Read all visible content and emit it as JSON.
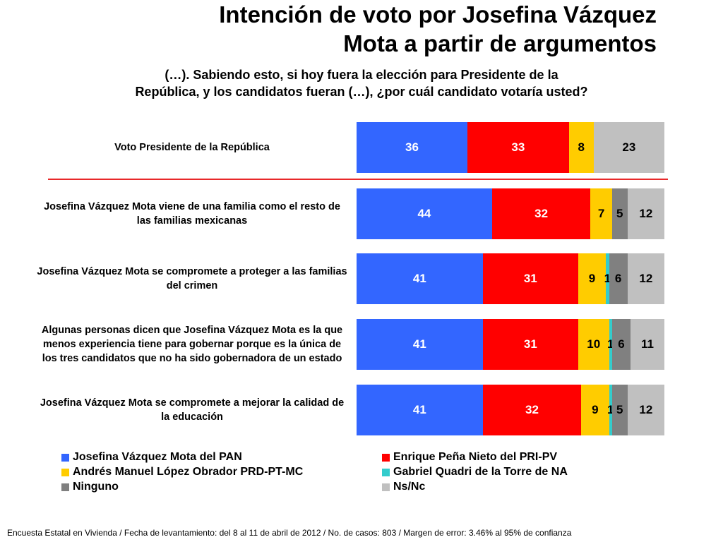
{
  "title": {
    "line1": "Intención de voto por Josefina Vázquez",
    "line2": "Mota a partir de argumentos"
  },
  "subtitle": {
    "line1": "(…). Sabiendo esto, si hoy fuera la elección para Presidente de la",
    "line2": "República, y los candidatos fueran (…), ¿por cuál candidato votaría usted?"
  },
  "colors": {
    "pan": "#3366ff",
    "pri": "#ff0000",
    "prd": "#ffcc00",
    "na": "#33cccc",
    "ninguno": "#808080",
    "nsnc": "#c0c0c0"
  },
  "chart_data": {
    "type": "bar",
    "orientation": "horizontal",
    "stacked": true,
    "percent": true,
    "categories": [
      "Voto Presidente de la República",
      "Josefina Vázquez Mota viene de una familia como el resto de las familias mexicanas",
      "Josefina Vázquez Mota se compromete a proteger a las familias del crimen",
      "Algunas personas dicen que Josefina Vázquez Mota es la que menos experiencia tiene para gobernar porque es la única de los tres candidatos que no ha sido gobernadora de un estado",
      "Josefina Vázquez Mota se compromete a mejorar la calidad de la educación"
    ],
    "series": [
      {
        "name": "Josefina Vázquez Mota del PAN",
        "key": "pan",
        "values": [
          36,
          44,
          41,
          41,
          41
        ]
      },
      {
        "name": "Enrique Peña Nieto del PRI-PV",
        "key": "pri",
        "values": [
          33,
          32,
          31,
          31,
          32
        ]
      },
      {
        "name": "Andrés Manuel López Obrador PRD-PT-MC",
        "key": "prd",
        "values": [
          8,
          7,
          9,
          10,
          9
        ]
      },
      {
        "name": "Gabriel Quadri de la Torre de NA",
        "key": "na",
        "values": [
          null,
          null,
          1,
          1,
          1
        ]
      },
      {
        "name": "Ninguno",
        "key": "ninguno",
        "values": [
          null,
          5,
          6,
          6,
          5
        ]
      },
      {
        "name": "Ns/Nc",
        "key": "nsnc",
        "values": [
          23,
          12,
          12,
          11,
          12
        ]
      }
    ],
    "legend_position": "bottom",
    "grid": false
  },
  "footer": "Encuesta Estatal en Vivienda / Fecha de levantamiento: del  8 al 11 de abril de 2012 / No. de casos: 803 / Margen de error: 3.46% al 95% de confianza"
}
